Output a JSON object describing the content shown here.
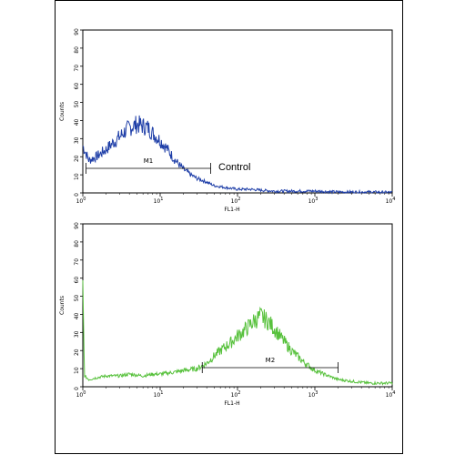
{
  "chart_data": [
    {
      "type": "histogram",
      "xlabel": "FL1-H",
      "ylabel": "Counts",
      "x_scale": "log",
      "xlim": [
        1,
        10000
      ],
      "ylim": [
        0,
        90
      ],
      "x_ticks": [
        {
          "value": 1,
          "base": "10",
          "exp": "0"
        },
        {
          "value": 10,
          "base": "10",
          "exp": "1"
        },
        {
          "value": 100,
          "base": "10",
          "exp": "2"
        },
        {
          "value": 1000,
          "base": "10",
          "exp": "3"
        },
        {
          "value": 10000,
          "base": "10",
          "exp": "4"
        }
      ],
      "y_ticks": [
        "0",
        "10",
        "20",
        "30",
        "40",
        "50",
        "60",
        "70",
        "80",
        "90"
      ],
      "color": "#1f3fa8",
      "series": [
        {
          "x": [
            1,
            1.2,
            1.5,
            2,
            2.5,
            3,
            3.5,
            4,
            5,
            6,
            7,
            8,
            10,
            12,
            15,
            20,
            25,
            30,
            40,
            50,
            70,
            100,
            150,
            200,
            300,
            500,
            1000,
            2000,
            5000,
            10000
          ],
          "y": [
            26,
            18,
            20,
            24,
            28,
            31,
            34,
            36,
            38,
            37,
            36,
            33,
            29,
            25,
            19,
            13,
            10,
            8,
            6,
            4,
            3,
            2,
            2,
            1.5,
            1,
            1,
            1,
            0.5,
            0.5,
            0.3
          ]
        }
      ],
      "gates": [
        {
          "label": "M1",
          "from": 1.1,
          "to": 45
        }
      ],
      "annotation": "Control"
    },
    {
      "type": "histogram",
      "xlabel": "FL1-H",
      "ylabel": "Counts",
      "x_scale": "log",
      "xlim": [
        1,
        10000
      ],
      "ylim": [
        0,
        90
      ],
      "x_ticks": [
        {
          "value": 1,
          "base": "10",
          "exp": "0"
        },
        {
          "value": 10,
          "base": "10",
          "exp": "1"
        },
        {
          "value": 100,
          "base": "10",
          "exp": "2"
        },
        {
          "value": 1000,
          "base": "10",
          "exp": "3"
        },
        {
          "value": 10000,
          "base": "10",
          "exp": "4"
        }
      ],
      "y_ticks": [
        "0",
        "10",
        "20",
        "30",
        "40",
        "50",
        "60",
        "70",
        "80",
        "90"
      ],
      "color": "#57c13c",
      "series": [
        {
          "x": [
            1,
            1.05,
            1.2,
            1.5,
            2,
            3,
            4,
            6,
            8,
            10,
            15,
            20,
            30,
            40,
            50,
            60,
            80,
            100,
            130,
            160,
            200,
            250,
            300,
            400,
            500,
            700,
            1000,
            1500,
            2000,
            3000,
            5000,
            10000
          ],
          "y": [
            55,
            6,
            4,
            5,
            6,
            6,
            7,
            6,
            7,
            7,
            8,
            9,
            10,
            13,
            17,
            20,
            24,
            28,
            32,
            36,
            39,
            36,
            32,
            25,
            20,
            14,
            9,
            6,
            4,
            3,
            2,
            2
          ]
        }
      ],
      "gates": [
        {
          "label": "M2",
          "from": 35,
          "to": 2000
        }
      ]
    }
  ]
}
